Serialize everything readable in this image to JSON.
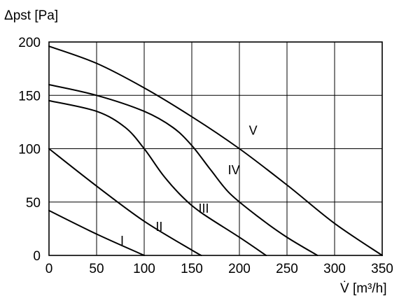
{
  "chart_data": {
    "type": "line",
    "ylabel": "Δpst [Pa]",
    "xlabel": "V̇ [m³/h]",
    "xlim": [
      0,
      350
    ],
    "ylim": [
      0,
      200
    ],
    "x_ticks": [
      0,
      50,
      100,
      150,
      200,
      250,
      300,
      350
    ],
    "y_ticks": [
      0,
      50,
      100,
      150,
      200
    ],
    "grid": true,
    "series": [
      {
        "name": "I",
        "points": [
          [
            0,
            42
          ],
          [
            50,
            20
          ],
          [
            100,
            0
          ]
        ]
      },
      {
        "name": "II",
        "points": [
          [
            0,
            100
          ],
          [
            50,
            65
          ],
          [
            100,
            32
          ],
          [
            150,
            5
          ],
          [
            160,
            0
          ]
        ]
      },
      {
        "name": "III",
        "points": [
          [
            0,
            145
          ],
          [
            50,
            135
          ],
          [
            80,
            120
          ],
          [
            100,
            100
          ],
          [
            120,
            75
          ],
          [
            140,
            55
          ],
          [
            160,
            40
          ],
          [
            200,
            17
          ],
          [
            228,
            0
          ]
        ]
      },
      {
        "name": "IV",
        "points": [
          [
            0,
            160
          ],
          [
            50,
            150
          ],
          [
            100,
            135
          ],
          [
            130,
            120
          ],
          [
            150,
            103
          ],
          [
            170,
            80
          ],
          [
            190,
            58
          ],
          [
            220,
            36
          ],
          [
            250,
            17
          ],
          [
            282,
            0
          ]
        ]
      },
      {
        "name": "V",
        "points": [
          [
            0,
            196
          ],
          [
            50,
            180
          ],
          [
            100,
            157
          ],
          [
            150,
            130
          ],
          [
            200,
            100
          ],
          [
            250,
            66
          ],
          [
            300,
            30
          ],
          [
            350,
            0
          ]
        ]
      }
    ]
  }
}
